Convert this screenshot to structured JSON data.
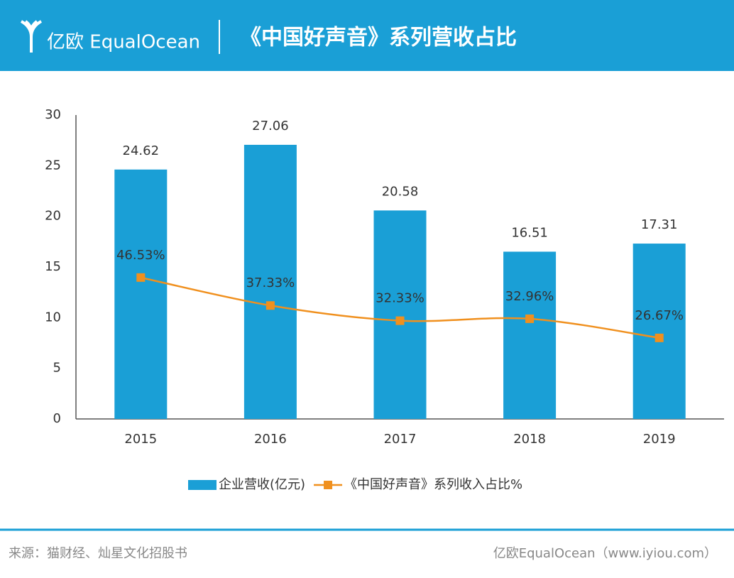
{
  "header": {
    "logo": "亿欧 EqualOcean"
  },
  "footer": {
    "source": "来源：猫财经、灿星文化招股书",
    "credit": "亿欧EqualOcean（www.iyiou.com）"
  },
  "chart_data": {
    "type": "bar_line",
    "title": "《中国好声音》系列营收占比",
    "categories": [
      "2015",
      "2016",
      "2017",
      "2018",
      "2019"
    ],
    "series": [
      {
        "name": "企业营收(亿元)",
        "type": "bar",
        "color": "#1a9fd6",
        "axis": "y",
        "values": [
          24.62,
          27.06,
          20.58,
          16.51,
          17.31
        ]
      },
      {
        "name": "《中国好声音》系列收入占比%",
        "type": "line",
        "color": "#f0901e",
        "axis": "y2",
        "values": [
          46.53,
          37.33,
          32.33,
          32.96,
          26.67
        ],
        "value_labels": [
          "46.53%",
          "37.33%",
          "32.33%",
          "32.96%",
          "26.67%"
        ]
      }
    ],
    "ylim": [
      0,
      30
    ],
    "yticks": [
      0,
      5,
      10,
      15,
      20,
      25,
      30
    ],
    "y2lim": [
      0,
      100
    ],
    "legend": "bottom"
  }
}
